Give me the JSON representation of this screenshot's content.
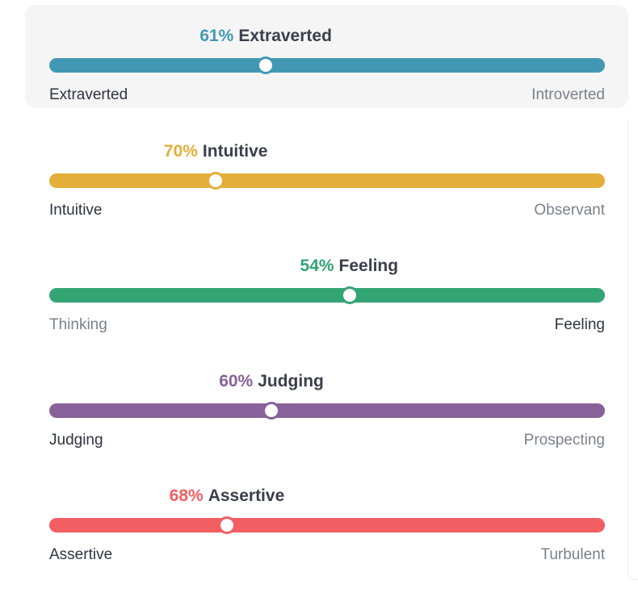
{
  "traits": [
    {
      "key": "energy",
      "percent_label": "61%",
      "trait_label": "Extraverted",
      "left_label": "Extraverted",
      "right_label": "Introverted",
      "dominant_side": "left",
      "percent": 61,
      "color": "#4298b4",
      "active": true
    },
    {
      "key": "mind",
      "percent_label": "70%",
      "trait_label": "Intuitive",
      "left_label": "Intuitive",
      "right_label": "Observant",
      "dominant_side": "left",
      "percent": 70,
      "color": "#e4ae3a",
      "active": false
    },
    {
      "key": "nature",
      "percent_label": "54%",
      "trait_label": "Feeling",
      "left_label": "Thinking",
      "right_label": "Feeling",
      "dominant_side": "right",
      "percent": 54,
      "color": "#33a474",
      "active": false
    },
    {
      "key": "tactics",
      "percent_label": "60%",
      "trait_label": "Judging",
      "left_label": "Judging",
      "right_label": "Prospecting",
      "dominant_side": "left",
      "percent": 60,
      "color": "#88619a",
      "active": false
    },
    {
      "key": "identity",
      "percent_label": "68%",
      "trait_label": "Assertive",
      "left_label": "Assertive",
      "right_label": "Turbulent",
      "dominant_side": "left",
      "percent": 68,
      "color": "#f25e62",
      "active": false
    }
  ]
}
